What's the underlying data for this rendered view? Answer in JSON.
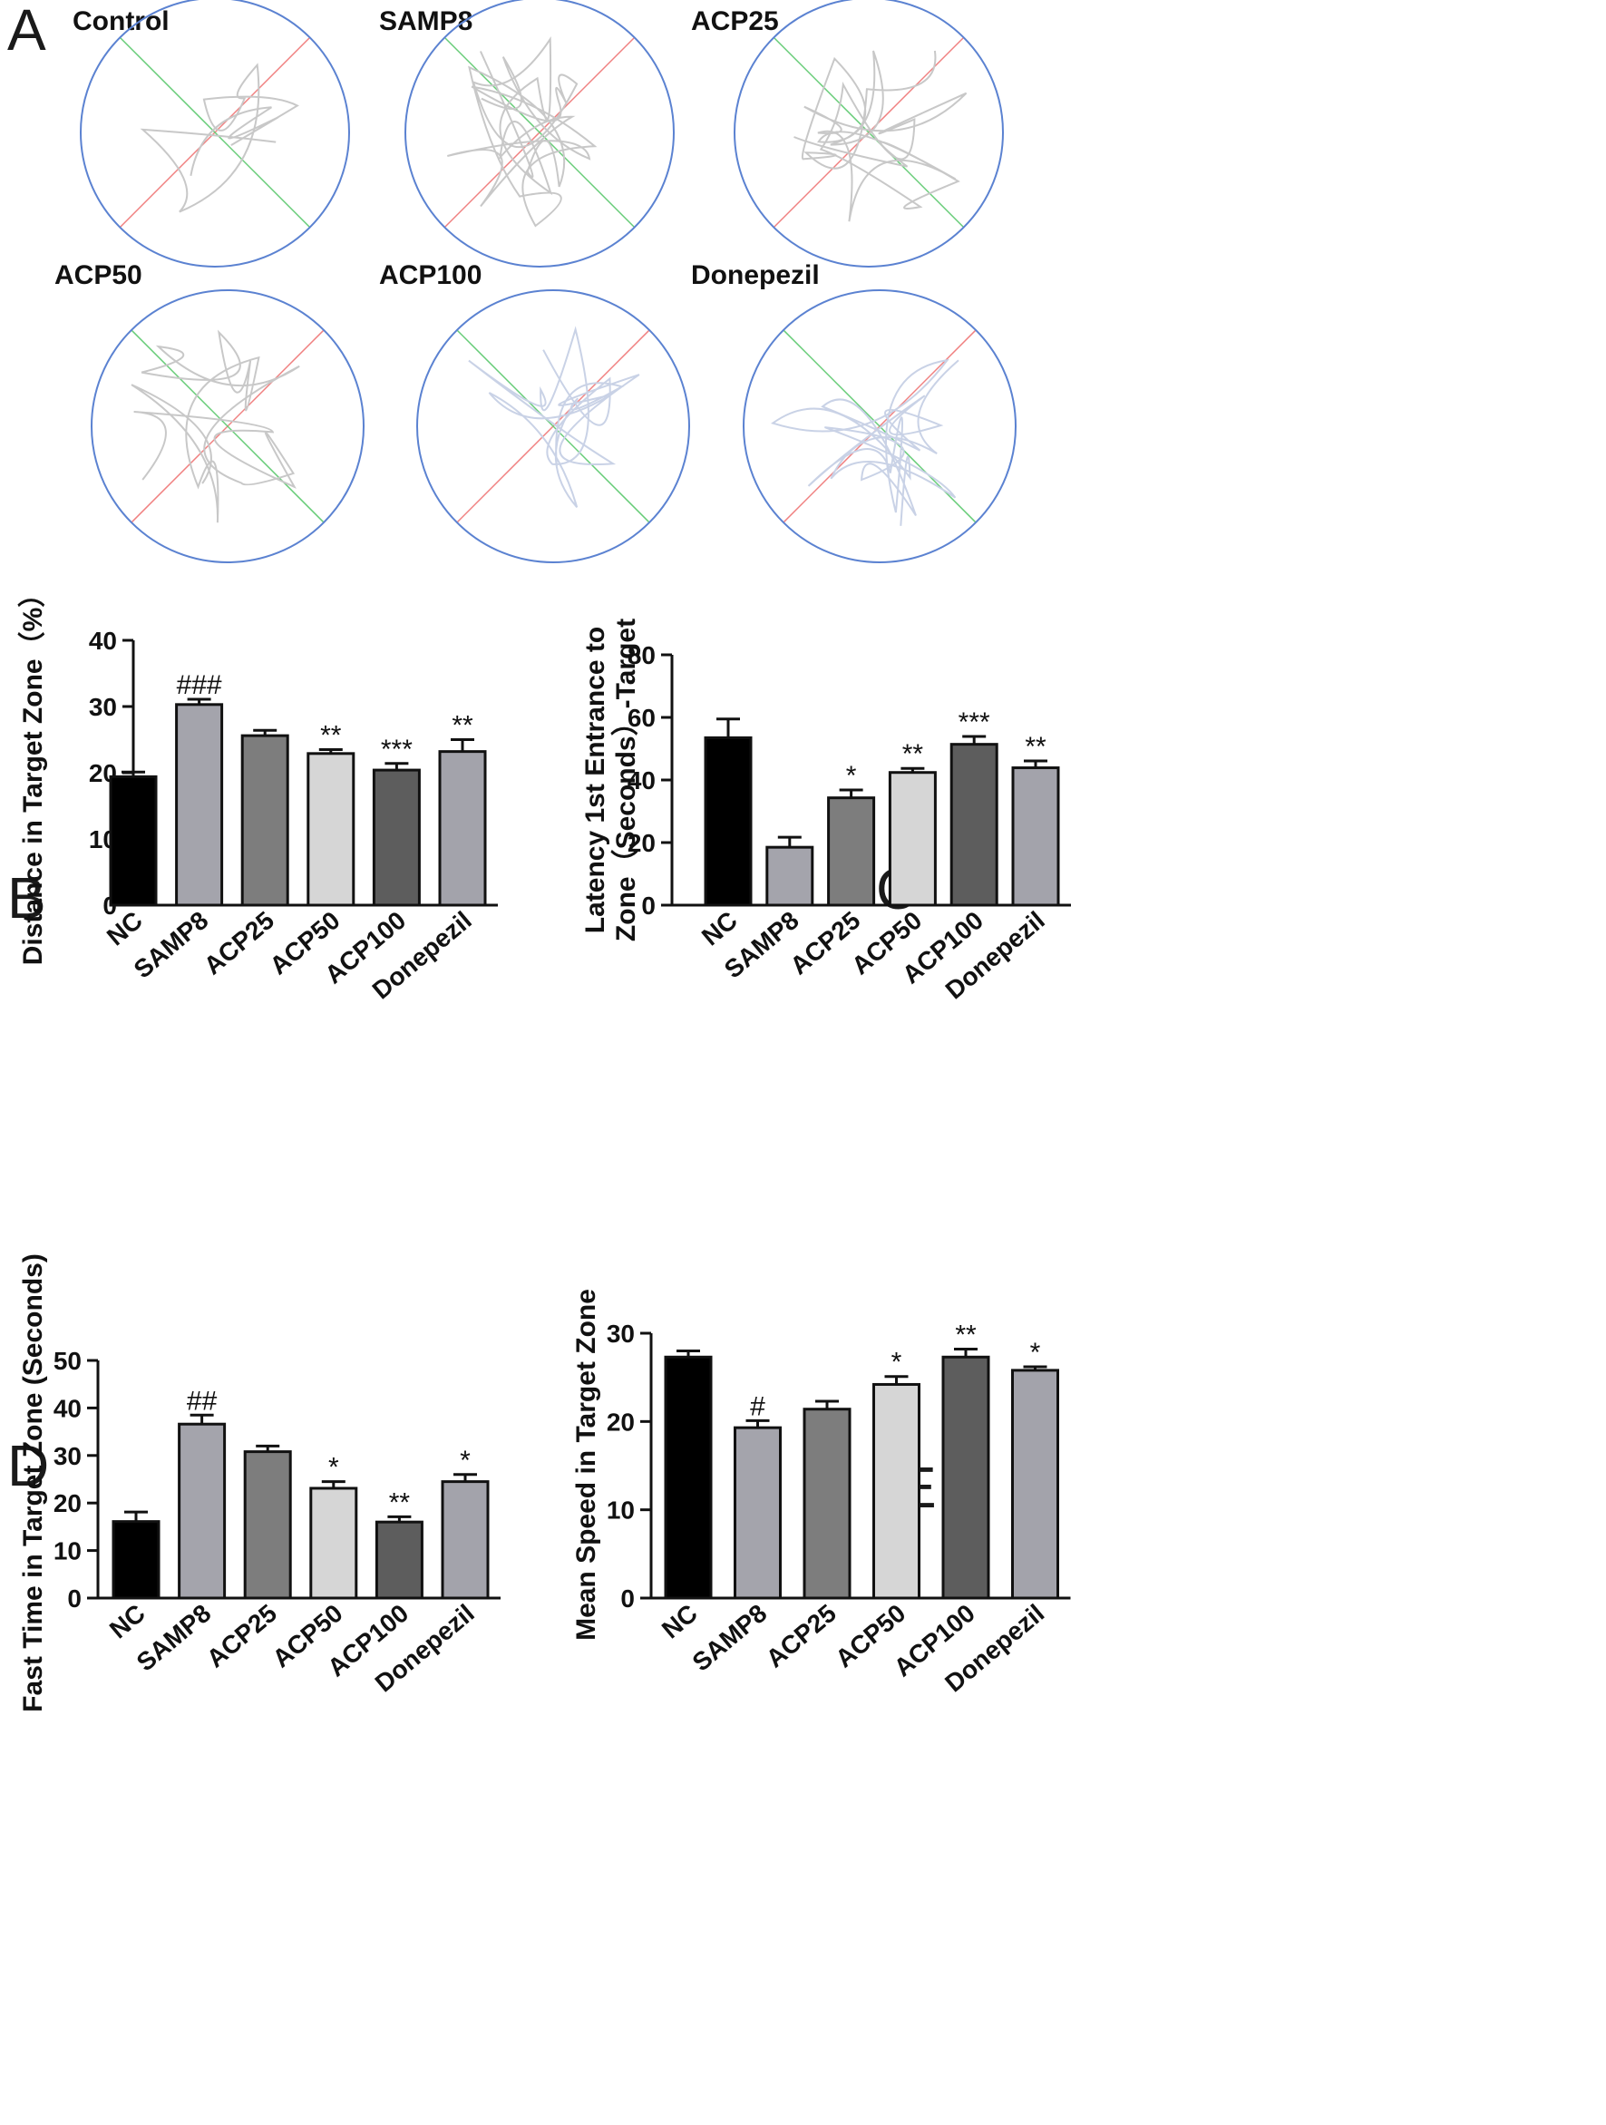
{
  "panel_a": {
    "letter": "A",
    "tracks": [
      {
        "label": "Control",
        "path_color": "#c8c8c8"
      },
      {
        "label": "SAMP8",
        "path_color": "#c8c8c8"
      },
      {
        "label": "ACP25",
        "path_color": "#c8c8c8"
      },
      {
        "label": "ACP50",
        "path_color": "#c8c8c8"
      },
      {
        "label": "ACP100",
        "path_color": "#c9d2e6"
      },
      {
        "label": "Donepezil",
        "path_color": "#c9d2e6"
      }
    ],
    "colors": {
      "circle": "#5b82d1",
      "diag_red": "#f08080",
      "diag_green": "#66cc77"
    }
  },
  "chart_data": [
    {
      "id": "B",
      "letter": "B",
      "type": "bar",
      "title": "",
      "ylabel": "Distance in Target Zone（%）",
      "ylim": [
        0,
        40
      ],
      "yticks": [
        0,
        10,
        20,
        30,
        40
      ],
      "categories": [
        "NC",
        "SAMP8",
        "ACP25",
        "ACP50",
        "ACP100",
        "Donepezil"
      ],
      "values": [
        19.4,
        30.3,
        25.6,
        22.9,
        20.4,
        23.2
      ],
      "errors": [
        0.7,
        0.8,
        0.8,
        0.6,
        1.0,
        1.8
      ],
      "significance": [
        "",
        "###",
        "",
        "**",
        "***",
        "**"
      ]
    },
    {
      "id": "C",
      "letter": "C",
      "type": "bar",
      "title": "",
      "ylabel_lines": [
        "Latency 1st Entrance to",
        "Zone（Seconds）-Target"
      ],
      "ylim": [
        0,
        80
      ],
      "yticks": [
        0,
        20,
        40,
        60,
        80
      ],
      "categories": [
        "NC",
        "SAMP8",
        "ACP25",
        "ACP50",
        "ACP100",
        "Donepezil"
      ],
      "values": [
        53.5,
        18.5,
        34.3,
        42.4,
        51.4,
        43.9
      ],
      "errors": [
        6.0,
        3.2,
        2.5,
        1.3,
        2.5,
        2.2
      ],
      "significance": [
        "",
        "",
        "*",
        "**",
        "***",
        "**"
      ]
    },
    {
      "id": "D",
      "letter": "D",
      "type": "bar",
      "title": "",
      "ylabel": "Fast Time in Target Zone (Seconds)",
      "ylim": [
        0,
        50
      ],
      "yticks": [
        0,
        10,
        20,
        30,
        40,
        50
      ],
      "categories": [
        "NC",
        "SAMP8",
        "ACP25",
        "ACP50",
        "ACP100",
        "Donepezil"
      ],
      "values": [
        16.1,
        36.6,
        30.8,
        23.1,
        16.0,
        24.5
      ],
      "errors": [
        2.0,
        1.9,
        1.2,
        1.4,
        1.1,
        1.5
      ],
      "significance": [
        "",
        "##",
        "",
        "*",
        "**",
        "*"
      ]
    },
    {
      "id": "E",
      "letter": "E",
      "type": "bar",
      "title": "",
      "ylabel": "Mean Speed in Target Zone",
      "ylim": [
        0,
        30
      ],
      "yticks": [
        0,
        10,
        20,
        30
      ],
      "categories": [
        "NC",
        "SAMP8",
        "ACP25",
        "ACP50",
        "ACP100",
        "Donepezil"
      ],
      "values": [
        27.3,
        19.3,
        21.4,
        24.2,
        27.3,
        25.8
      ],
      "errors": [
        0.7,
        0.8,
        0.9,
        0.9,
        0.9,
        0.4
      ],
      "significance": [
        "",
        "#",
        "",
        "*",
        "**",
        "*"
      ]
    }
  ],
  "bar_colors": [
    "#000000",
    "#a4a4ac",
    "#7d7d7d",
    "#d6d6d6",
    "#5d5d5d",
    "#a3a3ab"
  ]
}
